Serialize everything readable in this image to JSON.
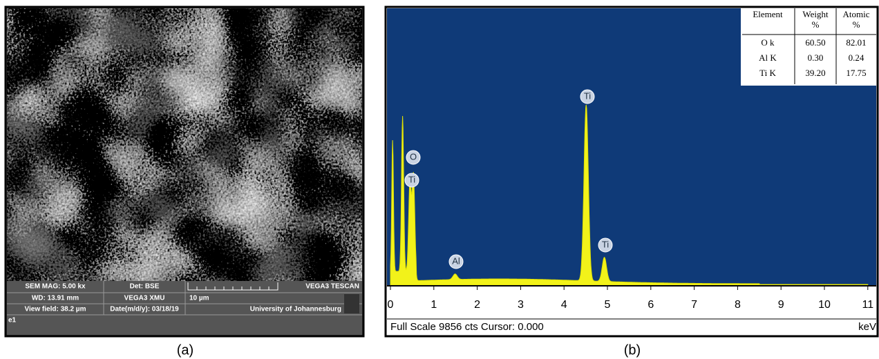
{
  "panel_a": {
    "info": [
      [
        "SEM MAG: 5.00 kx",
        "Det: BSE",
        "VEGA3 TESCAN"
      ],
      [
        "WD: 13.91 mm",
        "VEGA3 XMU",
        "10 µm"
      ],
      [
        "View field: 38.2 µm",
        "Date(m/d/y): 03/18/19",
        "University of Johannesburg"
      ]
    ],
    "footer": "e1",
    "caption": "(a)"
  },
  "panel_b": {
    "peak_labels": [
      "O",
      "Ti",
      "Al",
      "Ti",
      "Ti"
    ],
    "x_ticks": [
      "0",
      "1",
      "2",
      "3",
      "4",
      "5",
      "6",
      "7",
      "8",
      "9",
      "10",
      "11"
    ],
    "x_unit": "keV",
    "status": "Full Scale 9856 cts Cursor: 0.000",
    "table": {
      "header": [
        "Element",
        "Weight %",
        "Atomic %"
      ],
      "rows": [
        [
          "O k",
          "60.50",
          "82.01"
        ],
        [
          "Al K",
          "0.30",
          "0.24"
        ],
        [
          "Ti K",
          "39.20",
          "17.75"
        ]
      ]
    },
    "caption": "(b)"
  }
}
